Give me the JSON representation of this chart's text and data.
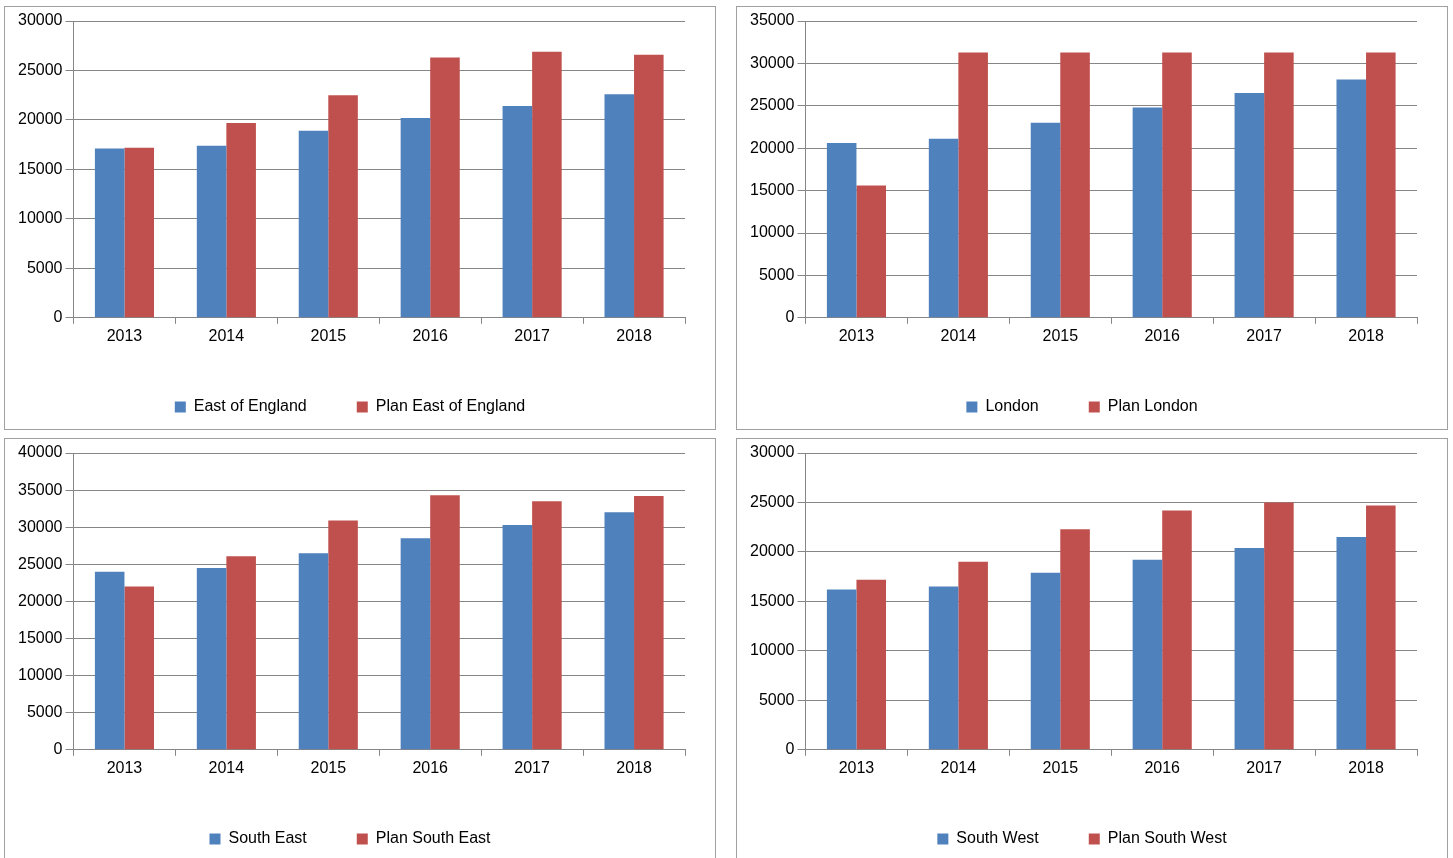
{
  "chart_data": [
    {
      "type": "bar",
      "categories": [
        "2013",
        "2014",
        "2015",
        "2016",
        "2017",
        "2018"
      ],
      "series": [
        {
          "name": "East of England",
          "color": "#4f81bd",
          "values": [
            17100,
            17400,
            18900,
            20200,
            21400,
            22600
          ]
        },
        {
          "name": "Plan East of England",
          "color": "#c0504d",
          "values": [
            17200,
            19700,
            22500,
            26300,
            26900,
            26600
          ]
        }
      ],
      "ylim": [
        0,
        30000
      ],
      "yticks": [
        0,
        5000,
        10000,
        15000,
        20000,
        25000,
        30000
      ],
      "grid": "y",
      "legend": "bottom"
    },
    {
      "type": "bar",
      "categories": [
        "2013",
        "2014",
        "2015",
        "2016",
        "2017",
        "2018"
      ],
      "series": [
        {
          "name": "London",
          "color": "#4f81bd",
          "values": [
            20600,
            21100,
            23000,
            24800,
            26500,
            28100
          ]
        },
        {
          "name": "Plan London",
          "color": "#c0504d",
          "values": [
            15600,
            31300,
            31300,
            31300,
            31300,
            31300
          ]
        }
      ],
      "ylim": [
        0,
        35000
      ],
      "yticks": [
        0,
        5000,
        10000,
        15000,
        20000,
        25000,
        30000,
        35000
      ],
      "grid": "y",
      "legend": "bottom"
    },
    {
      "type": "bar",
      "categories": [
        "2013",
        "2014",
        "2015",
        "2016",
        "2017",
        "2018"
      ],
      "series": [
        {
          "name": "South East",
          "color": "#4f81bd",
          "values": [
            24000,
            24500,
            26500,
            28500,
            30300,
            32000
          ]
        },
        {
          "name": "Plan South East",
          "color": "#c0504d",
          "values": [
            22000,
            26100,
            30900,
            34300,
            33500,
            34200
          ]
        }
      ],
      "ylim": [
        0,
        40000
      ],
      "yticks": [
        0,
        5000,
        10000,
        15000,
        20000,
        25000,
        30000,
        35000,
        40000
      ],
      "grid": "y",
      "legend": "bottom"
    },
    {
      "type": "bar",
      "categories": [
        "2013",
        "2014",
        "2015",
        "2016",
        "2017",
        "2018"
      ],
      "series": [
        {
          "name": "South West",
          "color": "#4f81bd",
          "values": [
            16200,
            16500,
            17900,
            19200,
            20400,
            21500
          ]
        },
        {
          "name": "Plan South West",
          "color": "#c0504d",
          "values": [
            17200,
            19000,
            22300,
            24200,
            25000,
            24700
          ]
        }
      ],
      "ylim": [
        0,
        30000
      ],
      "yticks": [
        0,
        5000,
        10000,
        15000,
        20000,
        25000,
        30000
      ],
      "grid": "y",
      "legend": "bottom"
    }
  ]
}
